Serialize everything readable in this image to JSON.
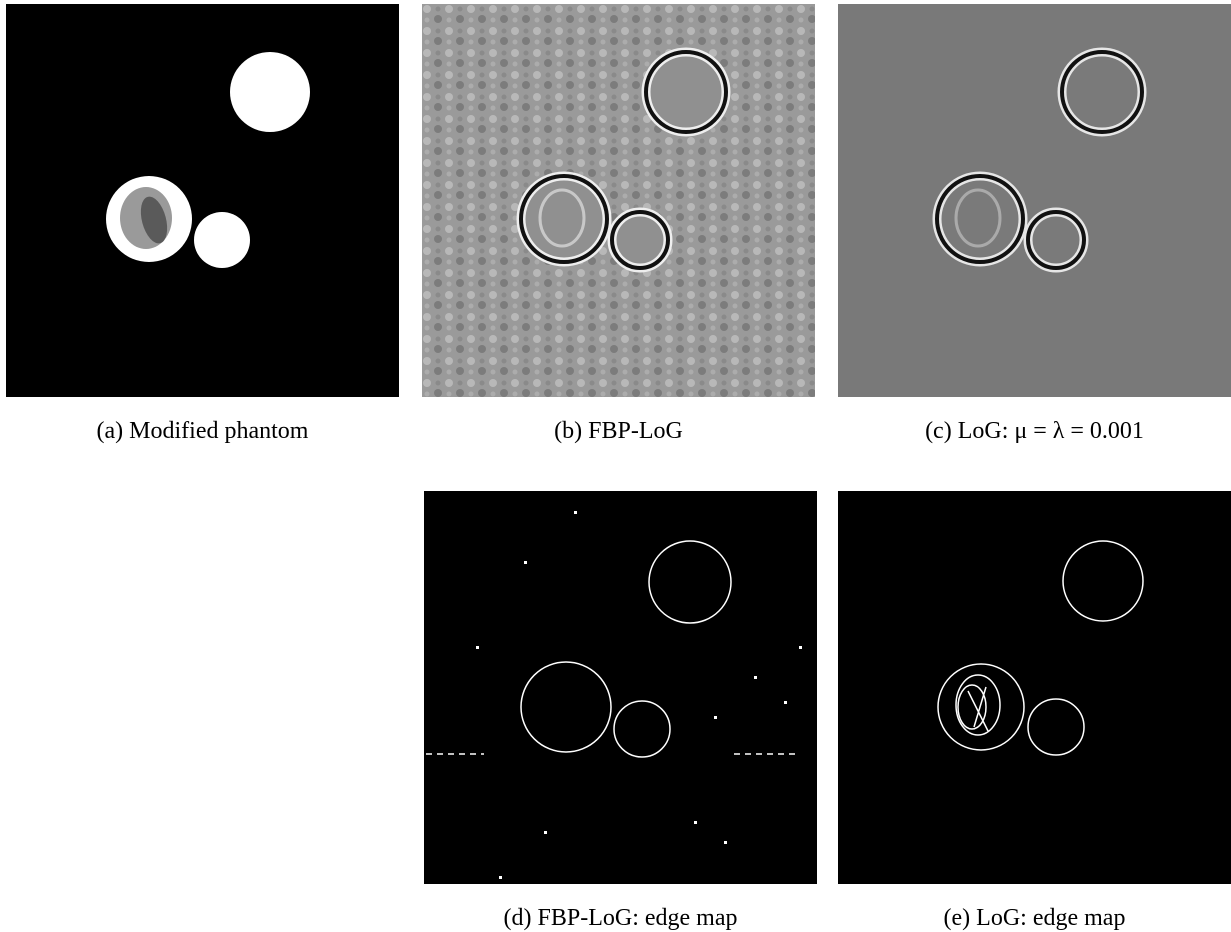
{
  "figure": {
    "panels": [
      {
        "caption": "(a) Modified phantom"
      },
      {
        "caption": "(b) FBP-LoG"
      },
      {
        "caption": "(c) LoG: μ = λ = 0.001"
      },
      {
        "caption": "(d) FBP-LoG: edge map"
      },
      {
        "caption": "(e) LoG: edge map"
      }
    ]
  }
}
